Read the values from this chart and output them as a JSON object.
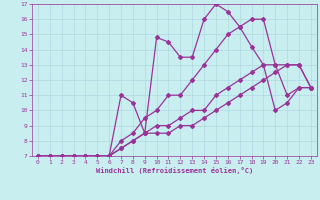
{
  "xlabel": "Windchill (Refroidissement éolien,°C)",
  "xlim": [
    -0.5,
    23.5
  ],
  "ylim": [
    7,
    17
  ],
  "yticks": [
    7,
    8,
    9,
    10,
    11,
    12,
    13,
    14,
    15,
    16,
    17
  ],
  "xticks": [
    0,
    1,
    2,
    3,
    4,
    5,
    6,
    7,
    8,
    9,
    10,
    11,
    12,
    13,
    14,
    15,
    16,
    17,
    18,
    19,
    20,
    21,
    22,
    23
  ],
  "bg_color": "#c8eef0",
  "grid_color": "#b0d8e0",
  "line_color": "#993399",
  "line3_x": [
    0,
    1,
    2,
    3,
    4,
    5,
    6,
    7,
    8,
    9,
    10,
    11,
    12,
    13,
    14,
    15,
    16,
    17,
    18,
    19,
    20,
    21,
    22,
    23
  ],
  "line3_y": [
    7,
    7,
    7,
    7,
    7,
    7,
    7,
    11,
    10.5,
    8.5,
    14.8,
    14.5,
    13.5,
    13.5,
    16,
    17,
    16.5,
    15.5,
    14.2,
    13,
    10,
    10.5,
    11.5,
    11.5
  ],
  "line2_x": [
    0,
    1,
    2,
    3,
    4,
    5,
    6,
    7,
    8,
    9,
    10,
    11,
    12,
    13,
    14,
    15,
    16,
    17,
    18,
    19,
    20,
    21,
    22,
    23
  ],
  "line2_y": [
    7,
    7,
    7,
    7,
    7,
    7,
    7,
    8.0,
    8.5,
    9.5,
    10,
    11,
    11,
    12,
    13,
    14,
    15,
    15.5,
    16,
    16,
    13,
    11,
    11.5,
    11.5
  ],
  "line1_x": [
    0,
    1,
    2,
    3,
    4,
    5,
    6,
    7,
    8,
    9,
    10,
    11,
    12,
    13,
    14,
    15,
    16,
    17,
    18,
    19,
    20,
    21,
    22,
    23
  ],
  "line1_y": [
    7,
    7,
    7,
    7,
    7,
    7,
    7,
    7.5,
    8.0,
    8.5,
    8.5,
    8.5,
    9,
    9,
    9.5,
    10,
    10.5,
    11,
    11.5,
    12,
    12.5,
    13,
    13,
    11.5
  ],
  "line4_x": [
    0,
    1,
    2,
    3,
    4,
    5,
    6,
    7,
    8,
    9,
    10,
    11,
    12,
    13,
    14,
    15,
    16,
    17,
    18,
    19,
    20,
    21,
    22,
    23
  ],
  "line4_y": [
    7,
    7,
    7,
    7,
    7,
    7,
    7,
    7.5,
    8.0,
    8.5,
    9,
    9,
    9.5,
    10,
    10,
    11,
    11.5,
    12,
    12.5,
    13,
    13,
    13,
    13,
    11.5
  ]
}
